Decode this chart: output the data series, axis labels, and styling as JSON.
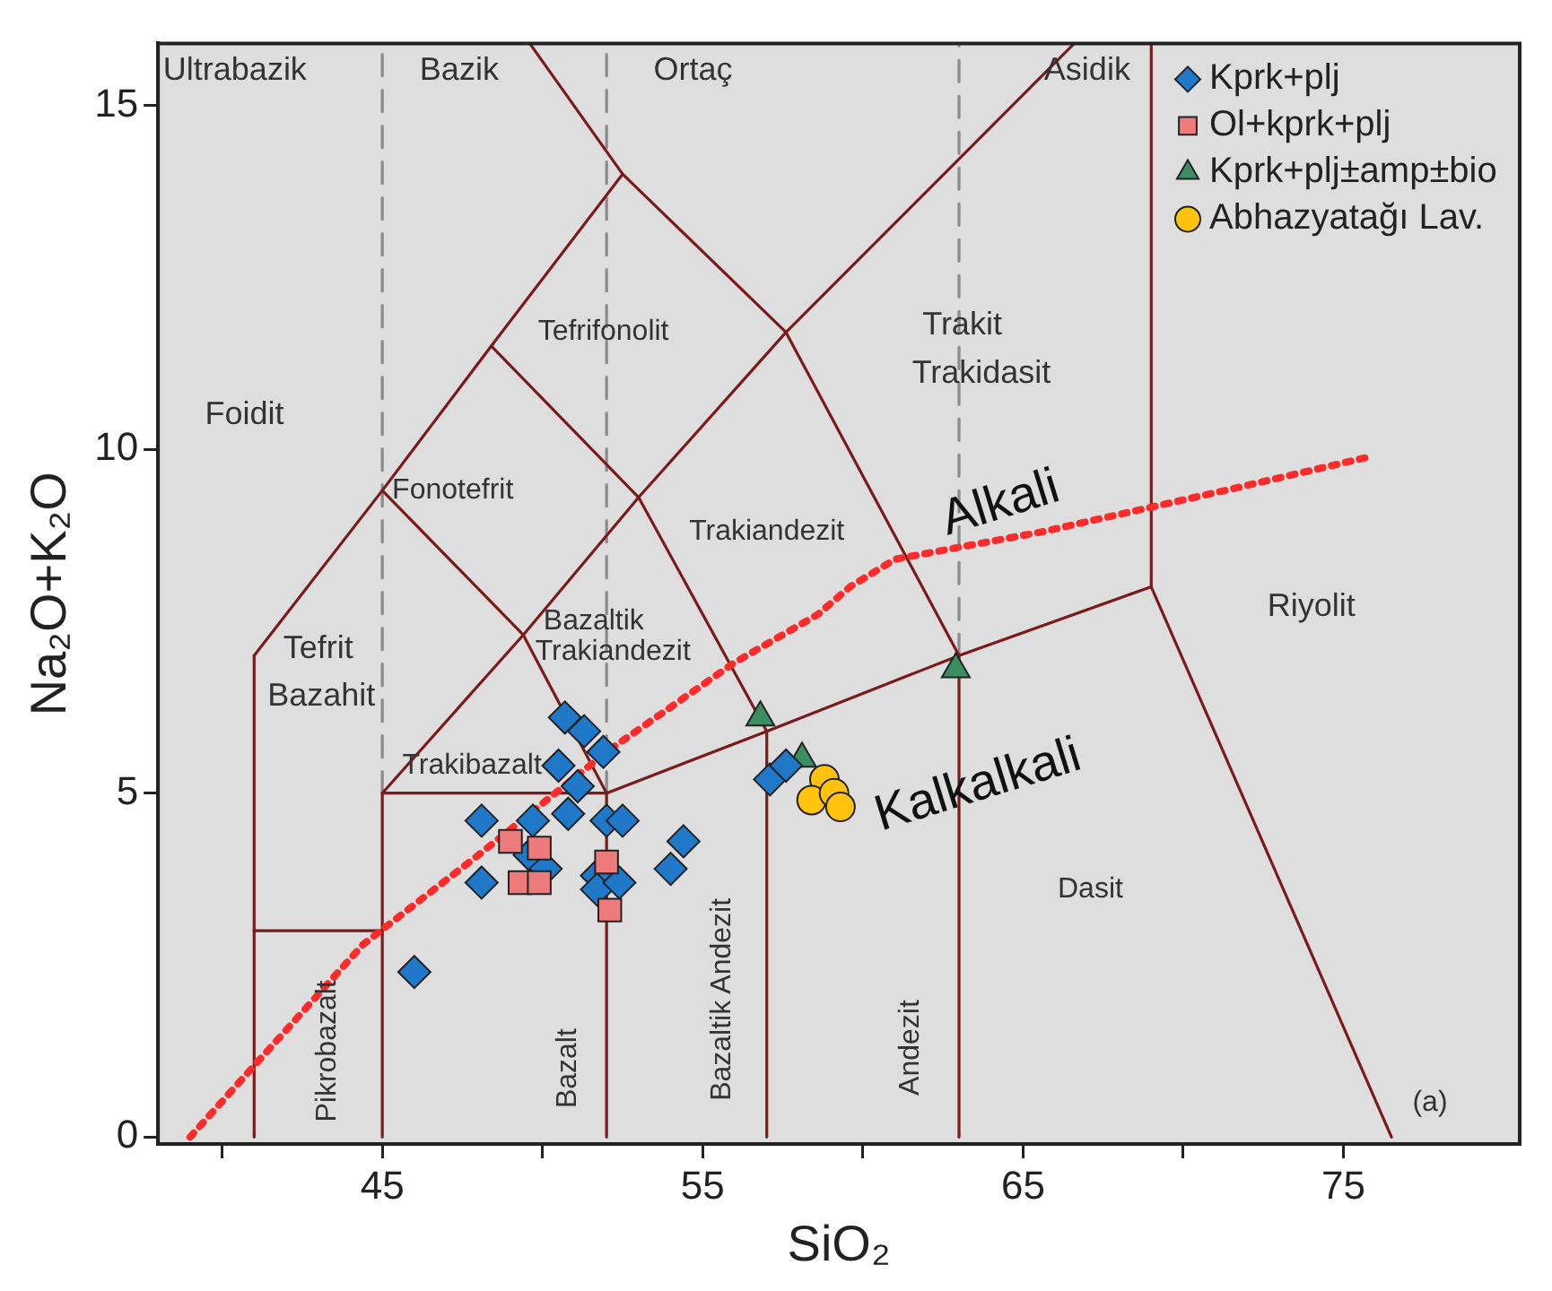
{
  "chart_data": {
    "type": "scatter",
    "xlabel": "SiO₂",
    "ylabel": "Na₂O+K₂O",
    "xlim": [
      38,
      80.5
    ],
    "ylim": [
      -0.1,
      15.9
    ],
    "xticks": [
      {
        "value": 40,
        "label": null
      },
      45,
      {
        "value": 50,
        "label": null
      },
      55,
      {
        "value": 60,
        "label": null
      },
      65,
      {
        "value": 70,
        "label": null
      },
      75
    ],
    "yticks": [
      0,
      5,
      10,
      15
    ],
    "legend": "top right",
    "series": [
      {
        "name": "Kprk+plj",
        "marker": "diamond",
        "color": "#1f78c8",
        "x": [
          50.7,
          51.3,
          51.9,
          50.5,
          51.1,
          50.8,
          48.1,
          49.7,
          52.0,
          52.5,
          49.6,
          50.1,
          48.1,
          54.4,
          54.0,
          51.7,
          51.7,
          52.4,
          57.1,
          57.6,
          46.0
        ],
        "values": [
          6.1,
          5.9,
          5.6,
          5.4,
          5.1,
          4.7,
          4.6,
          4.6,
          4.6,
          4.6,
          4.1,
          3.9,
          3.7,
          4.3,
          3.9,
          3.8,
          3.6,
          3.7,
          5.2,
          5.4,
          2.4
        ]
      },
      {
        "name": "Ol+kprk+plj",
        "marker": "square",
        "color": "#ee7b7b",
        "x": [
          49.0,
          49.9,
          49.3,
          49.9,
          52.0,
          52.1
        ],
        "values": [
          4.3,
          4.2,
          3.7,
          3.7,
          4.0,
          3.3
        ]
      },
      {
        "name": "Kprk+plj±amp±bio",
        "marker": "triangle",
        "color": "#3a8f62",
        "x": [
          56.8,
          62.9,
          58.1
        ],
        "values": [
          6.1,
          6.8,
          5.5
        ]
      },
      {
        "name": "Abhazyatağı Lav.",
        "marker": "circle",
        "color": "#ffc20e",
        "x": [
          58.8,
          58.4,
          59.1,
          59.3
        ],
        "values": [
          5.2,
          4.9,
          5.0,
          4.8
        ]
      },
      {
        "type": "line",
        "color": "#ff2a2a",
        "line_style": "dotted",
        "marker": "none",
        "x": [
          39.0,
          44.4,
          48.0,
          52.0,
          56.0,
          58.6,
          59.6,
          61.0,
          65.6,
          71.3,
          75.9
        ],
        "values": [
          0,
          2.8,
          4.1,
          5.6,
          6.9,
          7.6,
          8.0,
          8.4,
          8.8,
          9.4,
          9.9
        ]
      },
      {
        "type": "line",
        "color": "#7b1a1a",
        "line_style": "solid",
        "marker": "none",
        "x": [
          41,
          41
        ],
        "values": [
          0,
          7
        ]
      },
      {
        "type": "line",
        "color": "#7b1a1a",
        "line_style": "solid",
        "marker": "none",
        "x": [
          41,
          45
        ],
        "values": [
          3,
          3
        ]
      },
      {
        "type": "line",
        "color": "#7b1a1a",
        "line_style": "solid",
        "marker": "none",
        "x": [
          45,
          45,
          52,
          52
        ],
        "values": [
          0,
          5,
          5,
          0
        ]
      },
      {
        "type": "line",
        "color": "#7b1a1a",
        "line_style": "solid",
        "marker": "none",
        "x": [
          52,
          57,
          63,
          69,
          76.5
        ],
        "values": [
          5,
          5.9,
          7,
          8,
          0
        ]
      },
      {
        "type": "line",
        "color": "#7b1a1a",
        "line_style": "solid",
        "marker": "none",
        "x": [
          57,
          57
        ],
        "values": [
          0,
          5.9
        ]
      },
      {
        "type": "line",
        "color": "#7b1a1a",
        "line_style": "solid",
        "marker": "none",
        "x": [
          63,
          63
        ],
        "values": [
          0,
          7
        ]
      },
      {
        "type": "line",
        "color": "#7b1a1a",
        "line_style": "solid",
        "marker": "none",
        "x": [
          69,
          69
        ],
        "values": [
          8,
          15.9
        ]
      },
      {
        "type": "line",
        "color": "#7b1a1a",
        "line_style": "solid",
        "marker": "none",
        "x": [
          45,
          49.4,
          52
        ],
        "values": [
          5,
          7.3,
          5
        ]
      },
      {
        "type": "line",
        "color": "#7b1a1a",
        "line_style": "solid",
        "marker": "none",
        "x": [
          49.4,
          53,
          57
        ],
        "values": [
          7.3,
          9.3,
          5.9
        ]
      },
      {
        "type": "line",
        "color": "#7b1a1a",
        "line_style": "solid",
        "marker": "none",
        "x": [
          53,
          57.6,
          63
        ],
        "values": [
          9.3,
          11.7,
          7
        ]
      },
      {
        "type": "line",
        "color": "#7b1a1a",
        "line_style": "solid",
        "marker": "none",
        "x": [
          41,
          45,
          48.4,
          52.5,
          49.6
        ],
        "values": [
          7,
          9.4,
          11.5,
          14,
          15.9
        ]
      },
      {
        "type": "line",
        "color": "#7b1a1a",
        "line_style": "solid",
        "marker": "none",
        "x": [
          45,
          49.4
        ],
        "values": [
          9.4,
          7.3
        ]
      },
      {
        "type": "line",
        "color": "#7b1a1a",
        "line_style": "solid",
        "marker": "none",
        "x": [
          48.4,
          53
        ],
        "values": [
          11.5,
          9.3
        ]
      },
      {
        "type": "line",
        "color": "#7b1a1a",
        "line_style": "solid",
        "marker": "none",
        "x": [
          52.5,
          57.6,
          66.6
        ],
        "values": [
          14,
          11.7,
          15.9
        ]
      },
      {
        "type": "line",
        "color": "#8a8a8a",
        "line_style": "dashed",
        "marker": "none",
        "x": [
          45,
          45
        ],
        "values": [
          5,
          15.9
        ]
      },
      {
        "type": "line",
        "color": "#8a8a8a",
        "line_style": "dashed",
        "marker": "none",
        "x": [
          52,
          52
        ],
        "values": [
          5,
          15.9
        ]
      },
      {
        "type": "line",
        "color": "#8a8a8a",
        "line_style": "dashed",
        "marker": "none",
        "x": [
          63,
          63
        ],
        "values": [
          7,
          15.9
        ]
      }
    ],
    "annotations": [
      "Ultrabazik",
      "Bazik",
      "Ortaç",
      "Asidik",
      "Foidit",
      "Tefrifonolit",
      "Trakit",
      "Trakidasit",
      "Fonotefrit",
      "Trakiandezit",
      "Bazaltik",
      "Trakiandezit",
      "Tefrit",
      "Bazahit",
      "Riyolit",
      "Trakibazalt",
      "Dasit",
      "(a)",
      "Alkali",
      "Kalkalkali",
      "Pikrobazalt",
      "Bazalt",
      "Bazaltik Andezit",
      "Andezit"
    ]
  }
}
